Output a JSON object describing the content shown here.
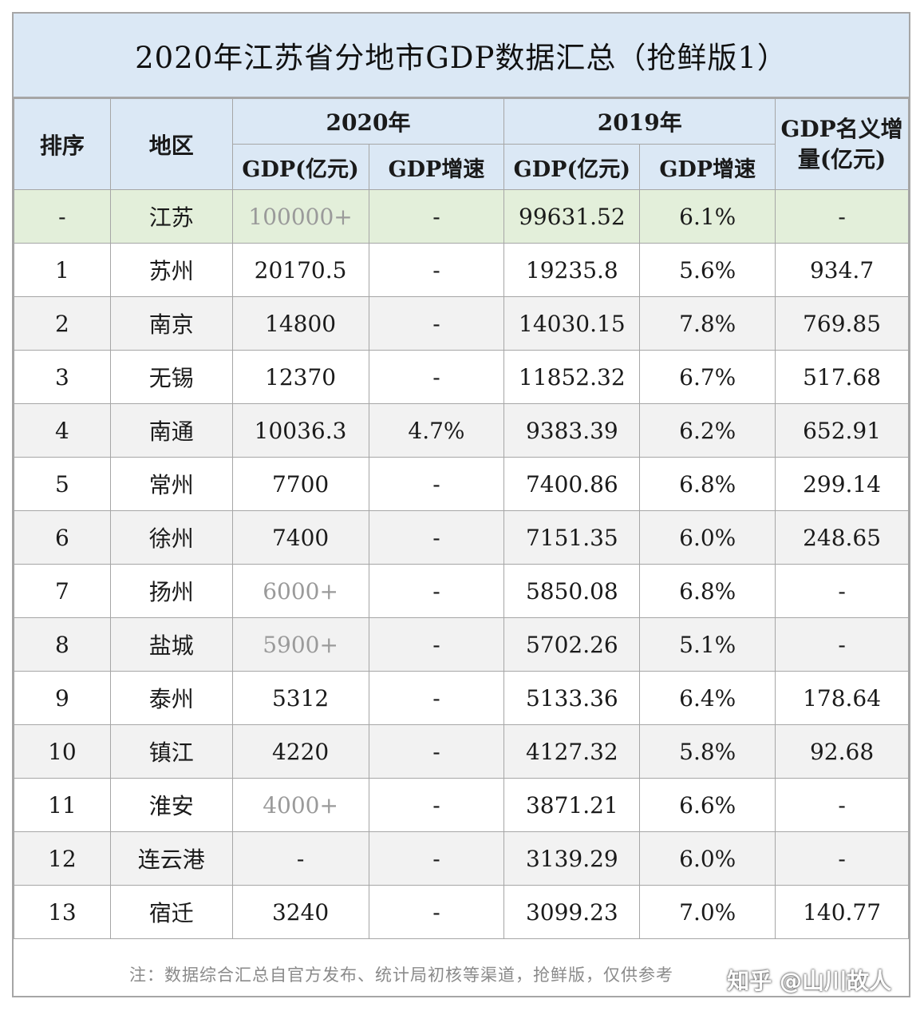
{
  "title": "2020年江苏省分地市GDP数据汇总（抢鲜版1）",
  "headers": {
    "rank": "排序",
    "region": "地区",
    "year2020": "2020年",
    "year2019": "2019年",
    "gdp": "GDP(亿元)",
    "growth": "GDP增速",
    "nominal_increase": "GDP名义增量(亿元)"
  },
  "province": {
    "rank": "-",
    "region": "江苏",
    "gdp2020": "100000+",
    "growth2020": "-",
    "gdp2019": "99631.52",
    "growth2019": "6.1%",
    "increase": "-"
  },
  "rows": [
    {
      "rank": "1",
      "region": "苏州",
      "gdp2020": "20170.5",
      "growth2020": "-",
      "gdp2019": "19235.8",
      "growth2019": "5.6%",
      "increase": "934.7"
    },
    {
      "rank": "2",
      "region": "南京",
      "gdp2020": "14800",
      "growth2020": "-",
      "gdp2019": "14030.15",
      "growth2019": "7.8%",
      "increase": "769.85"
    },
    {
      "rank": "3",
      "region": "无锡",
      "gdp2020": "12370",
      "growth2020": "-",
      "gdp2019": "11852.32",
      "growth2019": "6.7%",
      "increase": "517.68"
    },
    {
      "rank": "4",
      "region": "南通",
      "gdp2020": "10036.3",
      "growth2020": "4.7%",
      "gdp2019": "9383.39",
      "growth2019": "6.2%",
      "increase": "652.91"
    },
    {
      "rank": "5",
      "region": "常州",
      "gdp2020": "7700",
      "growth2020": "-",
      "gdp2019": "7400.86",
      "growth2019": "6.8%",
      "increase": "299.14"
    },
    {
      "rank": "6",
      "region": "徐州",
      "gdp2020": "7400",
      "growth2020": "-",
      "gdp2019": "7151.35",
      "growth2019": "6.0%",
      "increase": "248.65"
    },
    {
      "rank": "7",
      "region": "扬州",
      "gdp2020": "6000+",
      "growth2020": "-",
      "gdp2019": "5850.08",
      "growth2019": "6.8%",
      "increase": "-"
    },
    {
      "rank": "8",
      "region": "盐城",
      "gdp2020": "5900+",
      "growth2020": "-",
      "gdp2019": "5702.26",
      "growth2019": "5.1%",
      "increase": "-"
    },
    {
      "rank": "9",
      "region": "泰州",
      "gdp2020": "5312",
      "growth2020": "-",
      "gdp2019": "5133.36",
      "growth2019": "6.4%",
      "increase": "178.64"
    },
    {
      "rank": "10",
      "region": "镇江",
      "gdp2020": "4220",
      "growth2020": "-",
      "gdp2019": "4127.32",
      "growth2019": "5.8%",
      "increase": "92.68"
    },
    {
      "rank": "11",
      "region": "淮安",
      "gdp2020": "4000+",
      "growth2020": "-",
      "gdp2019": "3871.21",
      "growth2019": "6.6%",
      "increase": "-"
    },
    {
      "rank": "12",
      "region": "连云港",
      "gdp2020": "-",
      "growth2020": "-",
      "gdp2019": "3139.29",
      "growth2019": "6.0%",
      "increase": "-"
    },
    {
      "rank": "13",
      "region": "宿迁",
      "gdp2020": "3240",
      "growth2020": "-",
      "gdp2019": "3099.23",
      "growth2019": "7.0%",
      "increase": "140.77"
    }
  ],
  "note": "注：数据综合汇总自官方发布、统计局初核等渠道，抢鲜版，仅供参考",
  "watermark": "知乎 @山川故人"
}
